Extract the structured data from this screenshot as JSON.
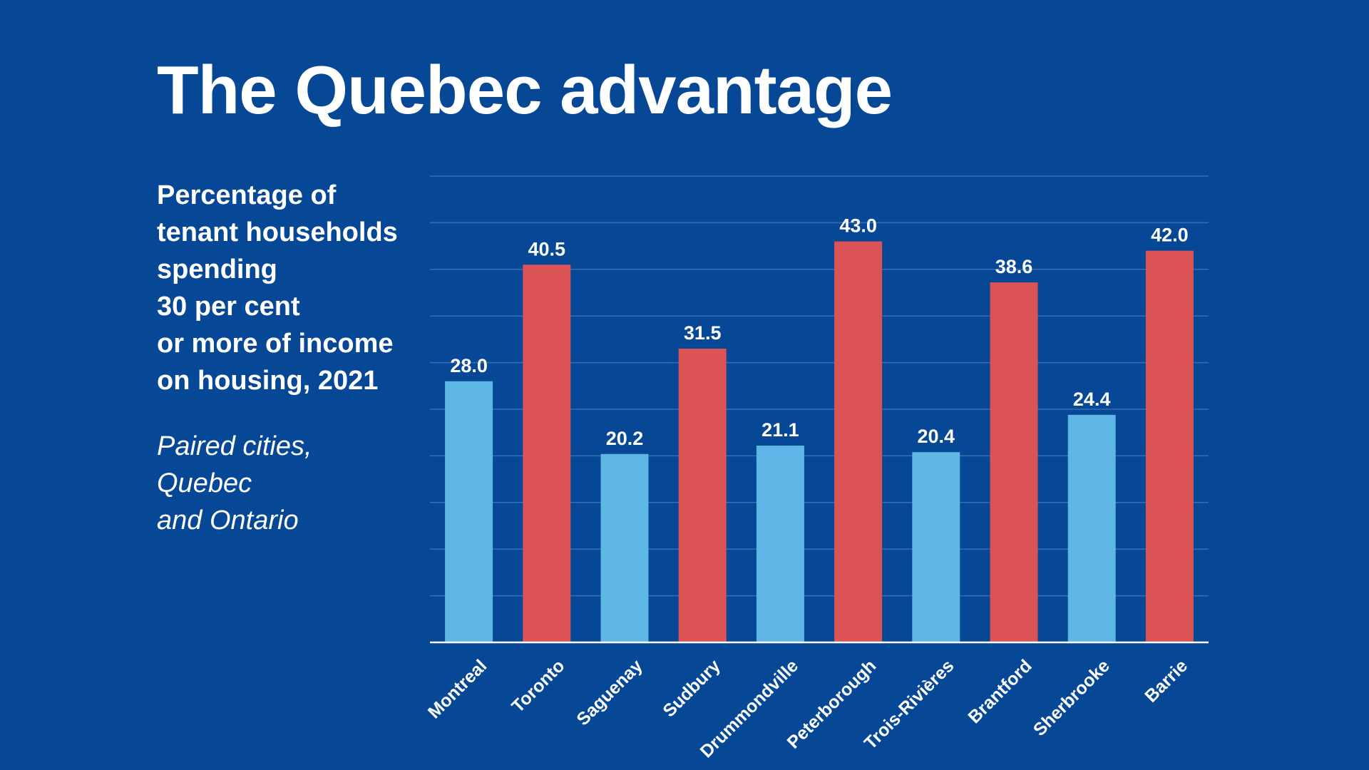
{
  "title": "The Quebec advantage",
  "subtitle_lines": [
    "Percentage of",
    "tenant households",
    "spending",
    "30 per cent",
    "or more of income",
    "on housing, 2021"
  ],
  "note_lines": [
    "Paired cities,",
    "Quebec",
    "and Ontario"
  ],
  "colors": {
    "background": "#064796",
    "quebec": "#5db6e6",
    "ontario": "#dc5355",
    "gridline": "#3a6db0",
    "baseline": "#ffffff"
  },
  "chart_data": {
    "type": "bar",
    "title": "The Quebec advantage",
    "xlabel": "",
    "ylabel": "",
    "ylim": [
      0,
      50
    ],
    "grid": true,
    "categories": [
      "Montreal",
      "Toronto",
      "Saguenay",
      "Sudbury",
      "Drummondville",
      "Peterborough",
      "Trois-Rivières",
      "Brantford",
      "Sherbrooke",
      "Barrie"
    ],
    "values": [
      28.0,
      40.5,
      20.2,
      31.5,
      21.1,
      43.0,
      20.4,
      38.6,
      24.4,
      42.0
    ],
    "value_labels": [
      "28.0",
      "40.5",
      "20.2",
      "31.5",
      "21.1",
      "43.0",
      "20.4",
      "38.6",
      "24.4",
      "42.0"
    ],
    "groups": [
      "quebec",
      "ontario",
      "quebec",
      "ontario",
      "quebec",
      "ontario",
      "quebec",
      "ontario",
      "quebec",
      "ontario"
    ]
  }
}
